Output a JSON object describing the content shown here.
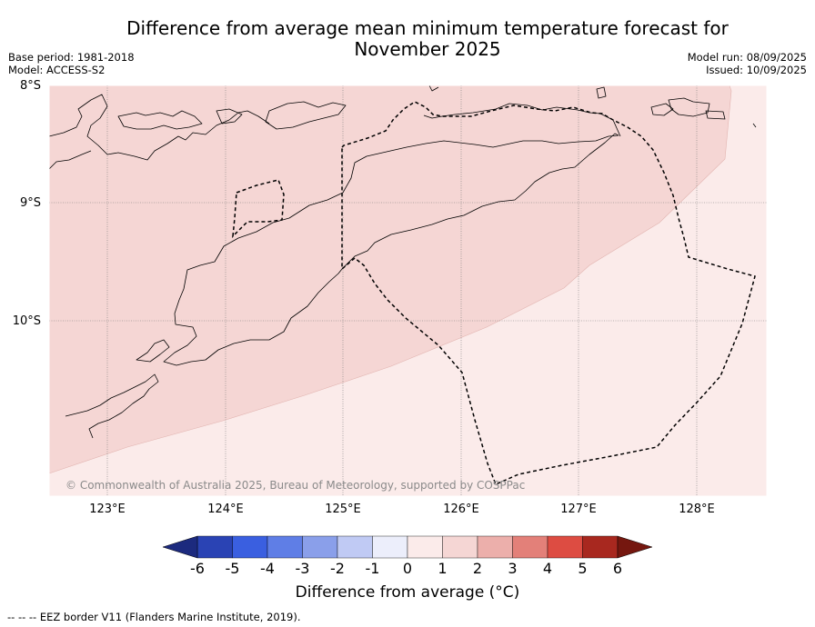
{
  "title_line1": "Difference from average mean minimum temperature forecast for",
  "title_line2": "November 2025",
  "base_period": "Base period: 1981-2018",
  "model": "Model: ACCESS-S2",
  "model_run": "Model run: 08/09/2025",
  "issued": "Issued: 10/09/2025",
  "lat_labels": [
    "8°S",
    "9°S",
    "10°S"
  ],
  "lon_labels": [
    "123°E",
    "124°E",
    "125°E",
    "126°E",
    "127°E",
    "128°E"
  ],
  "copyright": "© Commonwealth of Australia 2025, Bureau of Meteorology, supported by COSPPac",
  "colorbar": {
    "ticks": [
      "-6",
      "-5",
      "-4",
      "-3",
      "-2",
      "-1",
      "0",
      "1",
      "2",
      "3",
      "4",
      "5",
      "6"
    ],
    "colors": [
      "#1c2a7e",
      "#2a43b4",
      "#3a5fe0",
      "#5f7ee6",
      "#8a9fea",
      "#c0caf4",
      "#eceefb",
      "#fbebea",
      "#f5d6d4",
      "#ecafab",
      "#e38079",
      "#dd4c42",
      "#a8281f",
      "#75170f"
    ],
    "label": "Difference from average (°C)"
  },
  "legend_fills": {
    "zero_to_one": "#fbebea",
    "one_to_two": "#f5d6d4"
  },
  "footnote": "--  --  -- EEZ border V11 (Flanders Marine Institute, 2019)."
}
